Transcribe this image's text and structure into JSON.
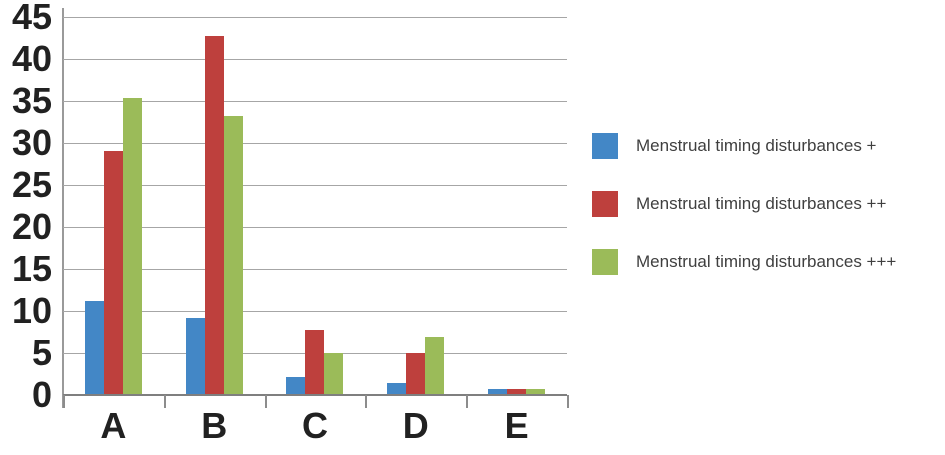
{
  "chart_data": {
    "type": "bar",
    "title": "",
    "xlabel": "",
    "ylabel": "",
    "categories": [
      "A",
      "B",
      "C",
      "D",
      "E"
    ],
    "series": [
      {
        "name": "Menstrual timing disturbances +",
        "color": "#4387c6",
        "values": [
          11.2,
          9.2,
          2.1,
          1.4,
          0.7
        ]
      },
      {
        "name": "Menstrual timing disturbances ++",
        "color": "#be403d",
        "values": [
          29.0,
          42.7,
          7.7,
          5.0,
          0.7
        ]
      },
      {
        "name": "Menstrual timing disturbances +++",
        "color": "#9bbb59",
        "values": [
          35.4,
          33.2,
          5.0,
          6.9,
          0.7
        ]
      }
    ],
    "ylim": [
      0,
      45
    ],
    "ytick_step": 5,
    "yticks": [
      0,
      5,
      10,
      15,
      20,
      25,
      30,
      35,
      40,
      45
    ],
    "grid": true,
    "legend_position": "right",
    "colors": {
      "gridline": "#a6a6a6",
      "axis": "#7f7f7f",
      "tick_text": "#212121",
      "legend_text": "#3f3f3f",
      "background": "#ffffff"
    }
  }
}
